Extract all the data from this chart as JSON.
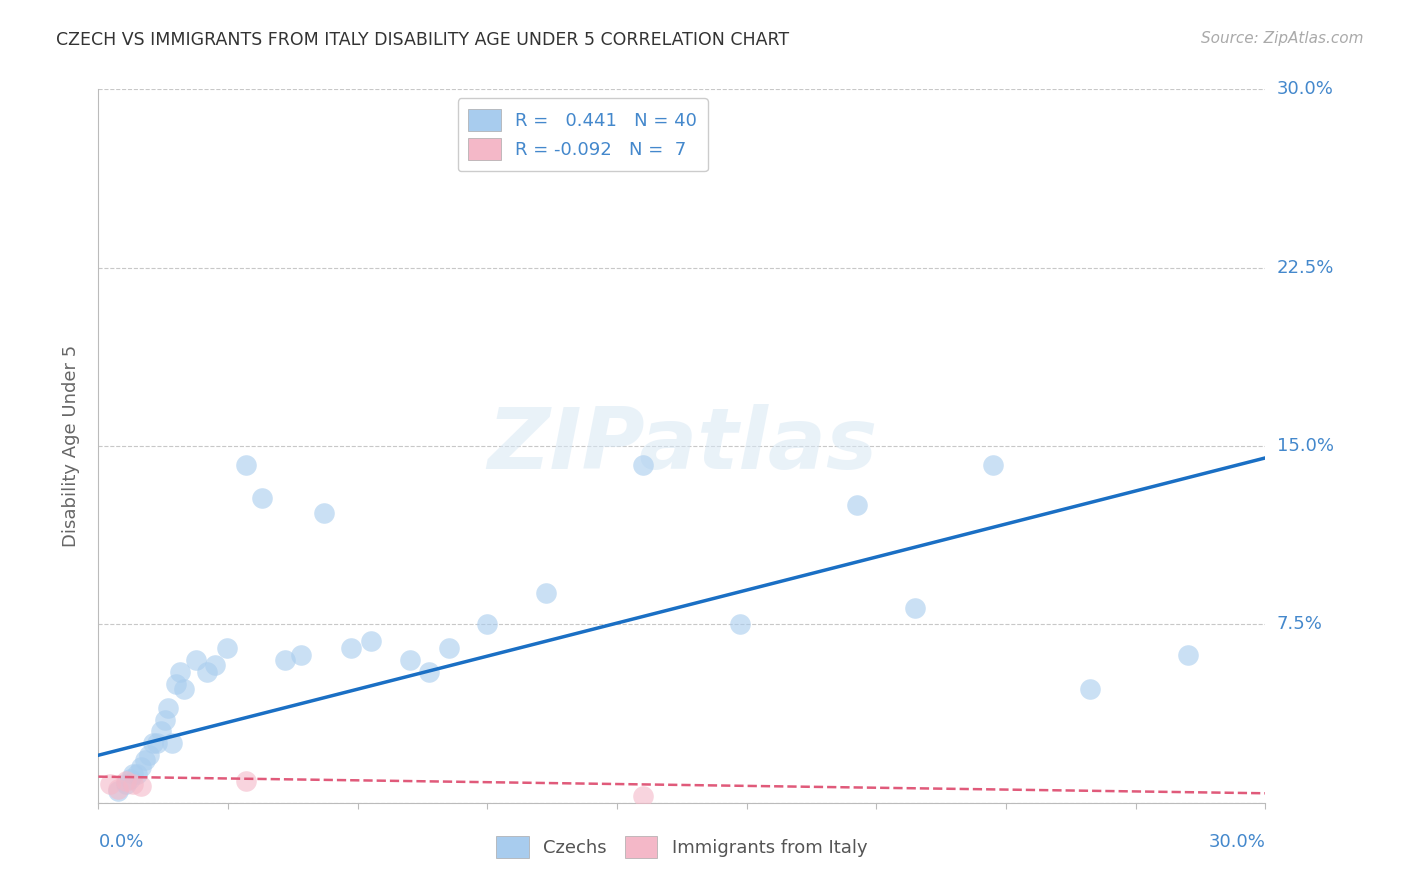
{
  "title": "CZECH VS IMMIGRANTS FROM ITALY DISABILITY AGE UNDER 5 CORRELATION CHART",
  "source": "Source: ZipAtlas.com",
  "ylabel": "Disability Age Under 5",
  "xlim": [
    0.0,
    0.3
  ],
  "ylim": [
    0.0,
    0.3
  ],
  "yticks": [
    0.0,
    0.075,
    0.15,
    0.225,
    0.3
  ],
  "ytick_labels": [
    "",
    "7.5%",
    "15.0%",
    "22.5%",
    "30.0%"
  ],
  "background_color": "#ffffff",
  "grid_color": "#c8c8c8",
  "watermark": "ZIPatlas",
  "czech_color": "#a8ccee",
  "italian_color": "#f4b8c8",
  "czech_line_color": "#1a6fc4",
  "italian_line_color": "#e05a7a",
  "label_color": "#4488cc",
  "legend_color": "#4488cc",
  "czechs_scatter_x": [
    0.005,
    0.007,
    0.008,
    0.009,
    0.01,
    0.011,
    0.012,
    0.013,
    0.014,
    0.015,
    0.016,
    0.017,
    0.018,
    0.019,
    0.02,
    0.021,
    0.022,
    0.025,
    0.028,
    0.03,
    0.033,
    0.038,
    0.042,
    0.048,
    0.052,
    0.058,
    0.065,
    0.07,
    0.08,
    0.085,
    0.09,
    0.1,
    0.115,
    0.14,
    0.165,
    0.195,
    0.21,
    0.23,
    0.255,
    0.28
  ],
  "czechs_scatter_y": [
    0.005,
    0.008,
    0.01,
    0.012,
    0.012,
    0.015,
    0.018,
    0.02,
    0.025,
    0.025,
    0.03,
    0.035,
    0.04,
    0.025,
    0.05,
    0.055,
    0.048,
    0.06,
    0.055,
    0.058,
    0.065,
    0.142,
    0.128,
    0.06,
    0.062,
    0.122,
    0.065,
    0.068,
    0.06,
    0.055,
    0.065,
    0.075,
    0.088,
    0.142,
    0.075,
    0.125,
    0.082,
    0.142,
    0.048,
    0.062
  ],
  "italian_scatter_x": [
    0.003,
    0.005,
    0.007,
    0.009,
    0.011,
    0.038,
    0.14
  ],
  "italian_scatter_y": [
    0.008,
    0.006,
    0.009,
    0.008,
    0.007,
    0.009,
    0.003
  ],
  "czech_line_x": [
    0.0,
    0.3
  ],
  "czech_line_y": [
    0.02,
    0.145
  ],
  "italian_line_x": [
    0.0,
    0.3
  ],
  "italian_line_y": [
    0.011,
    0.004
  ],
  "legend_R1": "R =   0.441   N = 40",
  "legend_R2": "R = -0.092   N =  7"
}
